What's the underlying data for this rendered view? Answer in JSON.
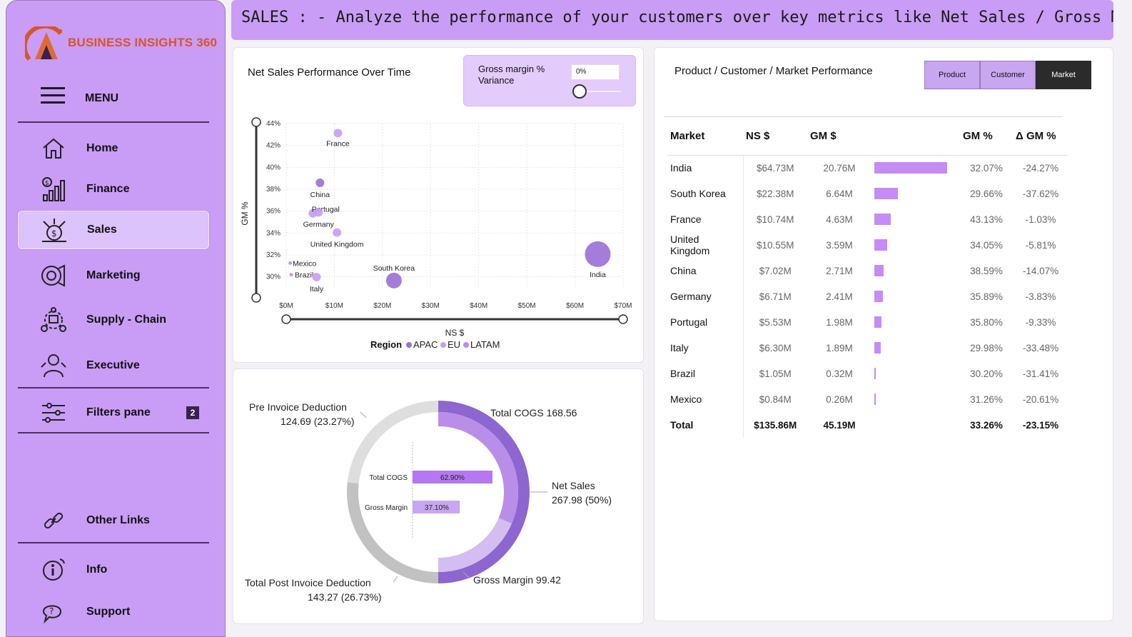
{
  "brand": {
    "name": "BUSINESS INSIGHTS 360"
  },
  "sidebar": {
    "menu_label": "MENU",
    "items": [
      {
        "label": "Home",
        "icon": "home-icon"
      },
      {
        "label": "Finance",
        "icon": "finance-chart-icon"
      },
      {
        "label": "Sales",
        "icon": "sales-icon",
        "active": true
      },
      {
        "label": "Marketing",
        "icon": "marketing-icon"
      },
      {
        "label": "Supply - Chain",
        "icon": "supply-chain-icon"
      },
      {
        "label": "Executive",
        "icon": "executive-icon"
      }
    ],
    "filters": {
      "label": "Filters pane",
      "badge": "2"
    },
    "other_links": "Other Links",
    "info": "Info",
    "support": "Support"
  },
  "header": {
    "text": "SALES : - Analyze the performance of your customers over key metrics like Net Sales / Gross Margin"
  },
  "scatter_card": {
    "title": "Net Sales Performance Over Time",
    "gm_filter": {
      "label": "Gross margin % Variance",
      "value": "0%"
    }
  },
  "table_card": {
    "title": "Product / Customer / Market Performance",
    "segments": [
      "Product",
      "Customer",
      "Market"
    ],
    "selected_segment": "Market",
    "columns": [
      "Market",
      "NS $",
      "GM $",
      "GM %",
      "Δ GM %"
    ],
    "rows": [
      {
        "market": "India",
        "ns": "$64.73M",
        "gm": "20.76M",
        "gm_pct": "32.07%",
        "delta": "-24.27%",
        "gm_value": 20.76
      },
      {
        "market": "South Korea",
        "ns": "$22.38M",
        "gm": "6.64M",
        "gm_pct": "29.66%",
        "delta": "-37.62%",
        "gm_value": 6.64
      },
      {
        "market": "France",
        "ns": "$10.74M",
        "gm": "4.63M",
        "gm_pct": "43.13%",
        "delta": "-1.03%",
        "gm_value": 4.63
      },
      {
        "market": "United Kingdom",
        "ns": "$10.55M",
        "gm": "3.59M",
        "gm_pct": "34.05%",
        "delta": "-5.81%",
        "gm_value": 3.59
      },
      {
        "market": "China",
        "ns": "$7.02M",
        "gm": "2.71M",
        "gm_pct": "38.59%",
        "delta": "-14.07%",
        "gm_value": 2.71
      },
      {
        "market": "Germany",
        "ns": "$6.71M",
        "gm": "2.41M",
        "gm_pct": "35.89%",
        "delta": "-3.83%",
        "gm_value": 2.41
      },
      {
        "market": "Portugal",
        "ns": "$5.53M",
        "gm": "1.98M",
        "gm_pct": "35.80%",
        "delta": "-9.33%",
        "gm_value": 1.98
      },
      {
        "market": "Italy",
        "ns": "$6.30M",
        "gm": "1.89M",
        "gm_pct": "29.98%",
        "delta": "-33.48%",
        "gm_value": 1.89
      },
      {
        "market": "Brazil",
        "ns": "$1.05M",
        "gm": "0.32M",
        "gm_pct": "30.20%",
        "delta": "-31.41%",
        "gm_value": 0.32
      },
      {
        "market": "Mexico",
        "ns": "$0.84M",
        "gm": "0.26M",
        "gm_pct": "31.26%",
        "delta": "-20.61%",
        "gm_value": 0.26
      }
    ],
    "total": {
      "market": "Total",
      "ns": "$135.86M",
      "gm": "45.19M",
      "gm_pct": "33.26%",
      "delta": "-23.15%"
    }
  },
  "colors": {
    "accent": "#c99df5",
    "apac": "#9a6fd6",
    "eu": "#c79cf5",
    "latam": "#b98ee8",
    "bar": "#c58bf6"
  },
  "chart_data": [
    {
      "type": "scatter",
      "xlabel": "NS $",
      "ylabel": "GM %",
      "xlim": [
        0,
        70
      ],
      "ylim": [
        29,
        44
      ],
      "x_ticks": [
        "$0M",
        "$10M",
        "$20M",
        "$30M",
        "$40M",
        "$50M",
        "$60M",
        "$70M"
      ],
      "y_ticks": [
        "30%",
        "32%",
        "34%",
        "36%",
        "38%",
        "40%",
        "42%",
        "44%"
      ],
      "legend_title": "Region",
      "legend": [
        "APAC",
        "EU",
        "LATAM"
      ],
      "points": [
        {
          "label": "France",
          "x": 10.74,
          "y": 43.13,
          "region": "EU"
        },
        {
          "label": "China",
          "x": 7.02,
          "y": 38.59,
          "region": "APAC"
        },
        {
          "label": "Portugal",
          "x": 5.53,
          "y": 35.8,
          "region": "EU"
        },
        {
          "label": "Germany",
          "x": 6.71,
          "y": 35.89,
          "region": "EU"
        },
        {
          "label": "United Kingdom",
          "x": 10.55,
          "y": 34.05,
          "region": "EU"
        },
        {
          "label": "Mexico",
          "x": 0.84,
          "y": 31.26,
          "region": "LATAM"
        },
        {
          "label": "Brazil",
          "x": 1.05,
          "y": 30.2,
          "region": "LATAM"
        },
        {
          "label": "Italy",
          "x": 6.3,
          "y": 29.98,
          "region": "EU"
        },
        {
          "label": "South Korea",
          "x": 22.38,
          "y": 29.66,
          "region": "APAC"
        },
        {
          "label": "India",
          "x": 64.73,
          "y": 32.07,
          "region": "APAC"
        }
      ],
      "grid": true
    },
    {
      "type": "pie",
      "slices": [
        {
          "label": "Total COGS",
          "value": 168.56,
          "text": "Total COGS 168.56"
        },
        {
          "label": "Net Sales",
          "value": 267.98,
          "text": "Net Sales 267.98 (50%)"
        },
        {
          "label": "Gross Margin",
          "value": 99.42,
          "text": "Gross Margin 99.42"
        },
        {
          "label": "Total Post Invoice Deduction",
          "value": 143.27,
          "text": "Total Post Invoice Deduction 143.27 (26.73%)"
        },
        {
          "label": "Pre Invoice Deduction",
          "value": 124.69,
          "text": "Pre Invoice Deduction 124.69 (23.27%)"
        }
      ],
      "inner_bars": [
        {
          "label": "Total COGS",
          "value": 62.9,
          "text": "62.90%"
        },
        {
          "label": "Gross Margin",
          "value": 37.1,
          "text": "37.10%"
        }
      ]
    }
  ]
}
